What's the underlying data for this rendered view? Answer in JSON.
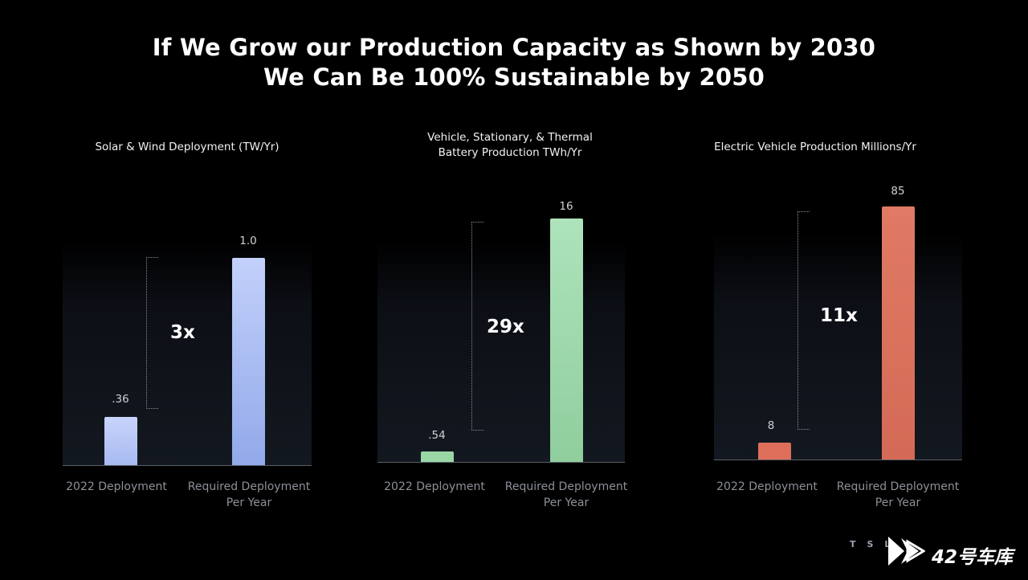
{
  "headline": {
    "line1": "If We Grow our Production Capacity as Shown by 2030",
    "line2": "We Can Be 100% Sustainable by 2050"
  },
  "colors": {
    "solar_bar": "#a9bcf2",
    "battery_bar": "#9ad6a6",
    "ev_bar": "#dd6e59"
  },
  "chart_data": [
    {
      "type": "bar",
      "title": "Solar & Wind Deployment (TW/Yr)",
      "categories": [
        "2022 Deployment",
        "Required Deployment Per Year"
      ],
      "categories_display": [
        [
          "2022 Deployment"
        ],
        [
          "Required Deployment",
          "Per Year"
        ]
      ],
      "values": [
        0.36,
        1.0
      ],
      "value_labels": [
        ".36",
        "1.0"
      ],
      "multiplier": "3x",
      "ylim": [
        0,
        1.0
      ]
    },
    {
      "type": "bar",
      "title": "Vehicle, Stationary, & Thermal Battery Production TWh/Yr",
      "title_lines": [
        "Vehicle, Stationary, & Thermal",
        "Battery Production TWh/Yr"
      ],
      "categories": [
        "2022 Deployment",
        "Required Deployment Per Year"
      ],
      "categories_display": [
        [
          "2022 Deployment"
        ],
        [
          "Required Deployment",
          "Per Year"
        ]
      ],
      "values": [
        0.54,
        16
      ],
      "value_labels": [
        ".54",
        "16"
      ],
      "multiplier": "29x",
      "ylim": [
        0,
        16
      ]
    },
    {
      "type": "bar",
      "title": "Electric Vehicle Production Millions/Yr",
      "categories": [
        "2022 Deployment",
        "Required Deployment Per Year"
      ],
      "categories_display": [
        [
          "2022 Deployment"
        ],
        [
          "Required Deployment",
          "Per Year"
        ]
      ],
      "values": [
        8,
        85
      ],
      "value_labels": [
        "8",
        "85"
      ],
      "multiplier": "11x",
      "ylim": [
        0,
        85
      ]
    }
  ],
  "watermark": {
    "letters": "TSL",
    "text": "42号车库"
  }
}
